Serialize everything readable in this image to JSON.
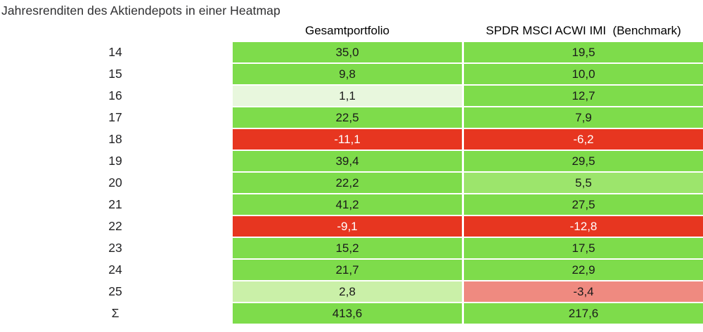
{
  "title": "Jahresrenditen des Aktiendepots in einer Heatmap",
  "columns": [
    "Gesamtportfolio",
    "SPDR MSCI ACWI IMI  (Benchmark)"
  ],
  "palette": {
    "strong_green": "#7edc4b",
    "light_green": "#9ce56c",
    "lighter_green": "#caf0a8",
    "pale_green": "#e8f7dd",
    "strong_red": "#e73620",
    "salmon_red": "#ef8a80",
    "text_dark": "#1a1a1a",
    "text_light": "#ffffff"
  },
  "rows": [
    {
      "label": "14",
      "portfolio": {
        "value": "35,0",
        "bg": "#7edc4b",
        "fg": "#1a1a1a"
      },
      "benchmark": {
        "value": "19,5",
        "bg": "#7edc4b",
        "fg": "#1a1a1a"
      }
    },
    {
      "label": "15",
      "portfolio": {
        "value": "9,8",
        "bg": "#7edc4b",
        "fg": "#1a1a1a"
      },
      "benchmark": {
        "value": "10,0",
        "bg": "#7edc4b",
        "fg": "#1a1a1a"
      }
    },
    {
      "label": "16",
      "portfolio": {
        "value": "1,1",
        "bg": "#e8f7dd",
        "fg": "#1a1a1a"
      },
      "benchmark": {
        "value": "12,7",
        "bg": "#7edc4b",
        "fg": "#1a1a1a"
      }
    },
    {
      "label": "17",
      "portfolio": {
        "value": "22,5",
        "bg": "#7edc4b",
        "fg": "#1a1a1a"
      },
      "benchmark": {
        "value": "7,9",
        "bg": "#7edc4b",
        "fg": "#1a1a1a"
      }
    },
    {
      "label": "18",
      "portfolio": {
        "value": "-11,1",
        "bg": "#e73620",
        "fg": "#ffffff"
      },
      "benchmark": {
        "value": "-6,2",
        "bg": "#e73620",
        "fg": "#ffffff"
      }
    },
    {
      "label": "19",
      "portfolio": {
        "value": "39,4",
        "bg": "#7edc4b",
        "fg": "#1a1a1a"
      },
      "benchmark": {
        "value": "29,5",
        "bg": "#7edc4b",
        "fg": "#1a1a1a"
      }
    },
    {
      "label": "20",
      "portfolio": {
        "value": "22,2",
        "bg": "#7edc4b",
        "fg": "#1a1a1a"
      },
      "benchmark": {
        "value": "5,5",
        "bg": "#9ce56c",
        "fg": "#1a1a1a"
      }
    },
    {
      "label": "21",
      "portfolio": {
        "value": "41,2",
        "bg": "#7edc4b",
        "fg": "#1a1a1a"
      },
      "benchmark": {
        "value": "27,5",
        "bg": "#7edc4b",
        "fg": "#1a1a1a"
      }
    },
    {
      "label": "22",
      "portfolio": {
        "value": "-9,1",
        "bg": "#e73620",
        "fg": "#ffffff"
      },
      "benchmark": {
        "value": "-12,8",
        "bg": "#e73620",
        "fg": "#ffffff"
      }
    },
    {
      "label": "23",
      "portfolio": {
        "value": "15,2",
        "bg": "#7edc4b",
        "fg": "#1a1a1a"
      },
      "benchmark": {
        "value": "17,5",
        "bg": "#7edc4b",
        "fg": "#1a1a1a"
      }
    },
    {
      "label": "24",
      "portfolio": {
        "value": "21,7",
        "bg": "#7edc4b",
        "fg": "#1a1a1a"
      },
      "benchmark": {
        "value": "22,9",
        "bg": "#7edc4b",
        "fg": "#1a1a1a"
      }
    },
    {
      "label": "25",
      "portfolio": {
        "value": "2,8",
        "bg": "#caf0a8",
        "fg": "#1a1a1a"
      },
      "benchmark": {
        "value": "-3,4",
        "bg": "#ef8a80",
        "fg": "#1a1a1a"
      }
    },
    {
      "label": "Σ",
      "portfolio": {
        "value": "413,6",
        "bg": "#7edc4b",
        "fg": "#1a1a1a"
      },
      "benchmark": {
        "value": "217,6",
        "bg": "#7edc4b",
        "fg": "#1a1a1a"
      }
    }
  ],
  "chart_data": {
    "type": "heatmap",
    "title": "Jahresrenditen des Aktiendepots in einer Heatmap",
    "categories": [
      "14",
      "15",
      "16",
      "17",
      "18",
      "19",
      "20",
      "21",
      "22",
      "23",
      "24",
      "25",
      "Σ"
    ],
    "series": [
      {
        "name": "Gesamtportfolio",
        "values": [
          35.0,
          9.8,
          1.1,
          22.5,
          -11.1,
          39.4,
          22.2,
          41.2,
          -9.1,
          15.2,
          21.7,
          2.8,
          413.6
        ]
      },
      {
        "name": "SPDR MSCI ACWI IMI (Benchmark)",
        "values": [
          19.5,
          10.0,
          12.7,
          7.9,
          -6.2,
          29.5,
          5.5,
          27.5,
          -12.8,
          17.5,
          22.9,
          -3.4,
          217.6
        ]
      }
    ],
    "value_format": "decimal comma, one fractional digit",
    "legend_position": "none",
    "grid": "off",
    "color_scale": {
      "positive": "#7edc4b",
      "near_zero": "#e8f7dd",
      "negative": "#e73620",
      "mild_negative": "#ef8a80"
    }
  }
}
